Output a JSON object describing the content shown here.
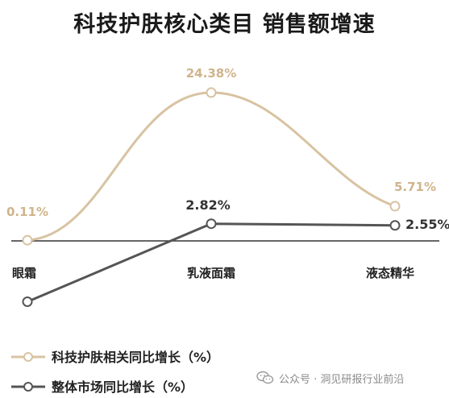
{
  "title": "科技护肤核心类目 销售额增速",
  "colors": {
    "tech": "#d8c3a2",
    "tech_label": "#cfb48c",
    "market": "#555555",
    "text": "#222222",
    "axis": "#333333"
  },
  "chart_data": {
    "type": "line",
    "title": "科技护肤核心类目 销售额增速",
    "categories": [
      "眼霜",
      "乳液面霜",
      "液态精华"
    ],
    "smooth": true,
    "ylim": [
      -10,
      30
    ],
    "series": [
      {
        "name": "科技护肤相关同比增长（%）",
        "values": [
          0.11,
          24.38,
          5.71
        ],
        "labels": [
          "0.11%",
          "24.38%",
          "5.71%"
        ]
      },
      {
        "name": "整体市场同比增长（%）",
        "values": [
          -10.0,
          2.82,
          2.55
        ],
        "labels": [
          "",
          "2.82%",
          "2.55%"
        ]
      }
    ],
    "legend_position": "bottom-left",
    "grid": false
  },
  "watermark": {
    "text": "公众号 · 洞见研报行业前沿",
    "icon": "wechat-icon"
  }
}
